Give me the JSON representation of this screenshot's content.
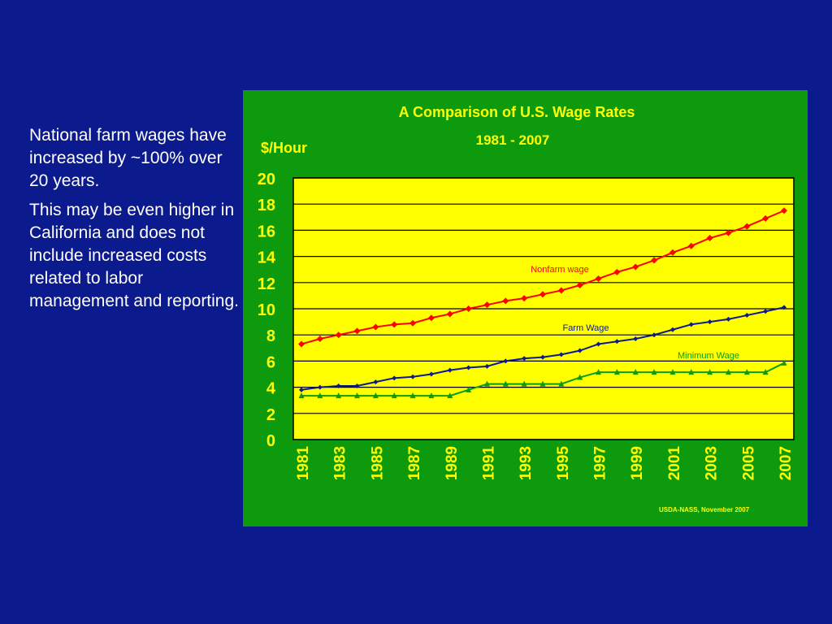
{
  "slide": {
    "paragraphs": [
      "National farm wages have increased by ~100% over 20 years.",
      "This may be even higher in California and does not include increased costs related to labor management and reporting."
    ]
  },
  "colors": {
    "background": "#0b1a8c",
    "chart_panel": "#0d9b0d",
    "plot_area": "#ffff00",
    "title_text": "#ffff00",
    "nonfarm": "#ff0000",
    "farm": "#0b1a8c",
    "minimum": "#0d9b0d"
  },
  "chart_data": {
    "type": "line",
    "title": "A Comparison of U.S. Wage Rates",
    "subtitle": "1981 - 2007",
    "ylabel": "$/Hour",
    "source": "USDA-NASS, November 2007",
    "ylim": [
      0,
      20
    ],
    "yticks": [
      0,
      2,
      4,
      6,
      8,
      10,
      12,
      14,
      16,
      18,
      20
    ],
    "x": [
      1981,
      1982,
      1983,
      1984,
      1985,
      1986,
      1987,
      1988,
      1989,
      1990,
      1991,
      1992,
      1993,
      1994,
      1995,
      1996,
      1997,
      1998,
      1999,
      2000,
      2001,
      2002,
      2003,
      2004,
      2005,
      2006,
      2007
    ],
    "xtick_labels": [
      "1981",
      "1983",
      "1985",
      "1987",
      "1989",
      "1991",
      "1993",
      "1995",
      "1997",
      "1999",
      "2001",
      "2003",
      "2005",
      "2007"
    ],
    "grid": true,
    "series": [
      {
        "name": "Nonfarm wage",
        "marker": "diamond",
        "values": [
          7.3,
          7.7,
          8.0,
          8.3,
          8.6,
          8.8,
          8.9,
          9.3,
          9.6,
          10.0,
          10.3,
          10.6,
          10.8,
          11.1,
          11.4,
          11.8,
          12.3,
          12.8,
          13.2,
          13.7,
          14.3,
          14.8,
          15.4,
          15.8,
          16.3,
          16.9,
          17.5
        ]
      },
      {
        "name": "Farm Wage",
        "marker": "diamond",
        "values": [
          3.8,
          4.0,
          4.1,
          4.1,
          4.4,
          4.7,
          4.8,
          5.0,
          5.3,
          5.5,
          5.6,
          6.0,
          6.2,
          6.3,
          6.5,
          6.8,
          7.3,
          7.5,
          7.7,
          8.0,
          8.4,
          8.8,
          9.0,
          9.2,
          9.5,
          9.8,
          10.1
        ]
      },
      {
        "name": "Minimum Wage",
        "marker": "triangle",
        "values": [
          3.35,
          3.35,
          3.35,
          3.35,
          3.35,
          3.35,
          3.35,
          3.35,
          3.35,
          3.8,
          4.25,
          4.25,
          4.25,
          4.25,
          4.25,
          4.75,
          5.15,
          5.15,
          5.15,
          5.15,
          5.15,
          5.15,
          5.15,
          5.15,
          5.15,
          5.15,
          5.85
        ]
      }
    ]
  }
}
